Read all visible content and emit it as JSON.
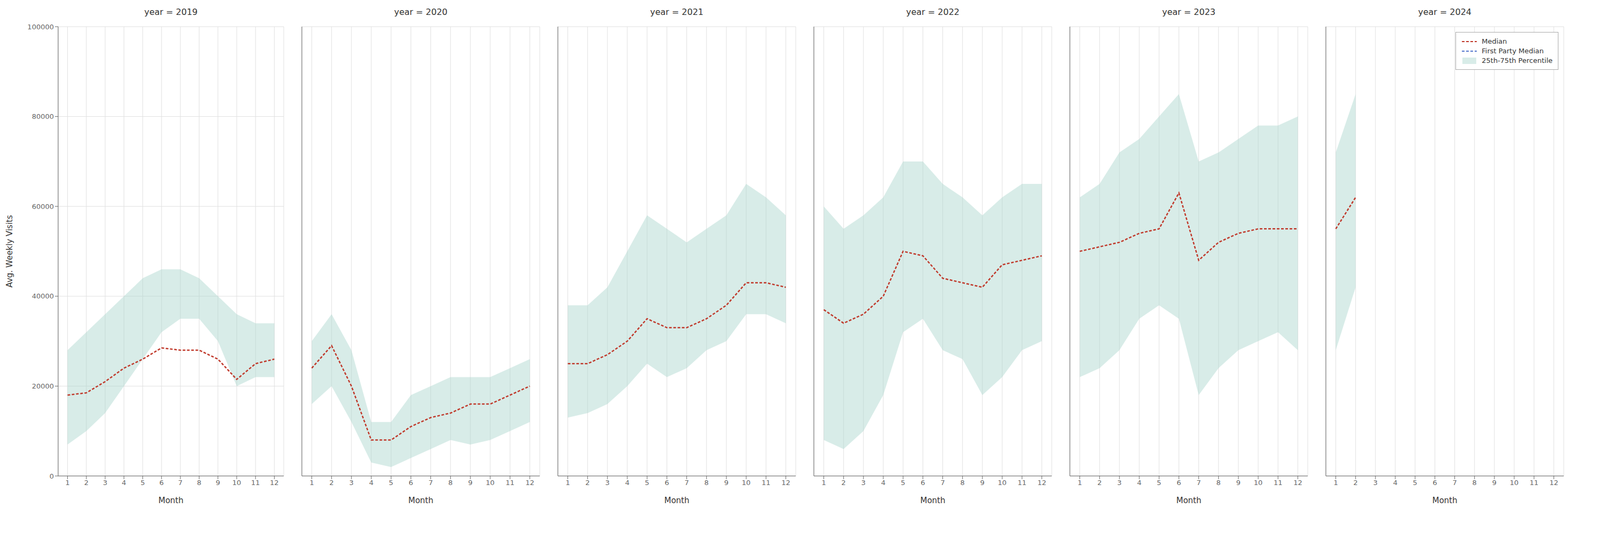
{
  "chart_data": [
    {
      "type": "line",
      "title": "year = 2019",
      "xlabel": "Month",
      "ylabel": "Avg. Weekly Visits",
      "x": [
        1,
        2,
        3,
        4,
        5,
        6,
        7,
        8,
        9,
        10,
        11,
        12
      ],
      "xlim": [
        0.5,
        12.5
      ],
      "xticks": [
        1,
        2,
        3,
        4,
        5,
        6,
        7,
        8,
        9,
        10,
        11,
        12
      ],
      "ylim": [
        0,
        100000
      ],
      "yticks": [
        0,
        20000,
        40000,
        60000,
        80000,
        100000
      ],
      "grid": true,
      "series": [
        {
          "name": "25th-75th Percentile",
          "type": "band",
          "color": "#a8d5cc",
          "q25": [
            7000,
            10000,
            14000,
            20000,
            26000,
            32000,
            35000,
            35000,
            30000,
            20000,
            22000,
            22000
          ],
          "q75": [
            28000,
            32000,
            36000,
            40000,
            44000,
            46000,
            46000,
            44000,
            40000,
            36000,
            34000,
            34000
          ]
        },
        {
          "name": "Median",
          "type": "line",
          "color": "#c0392b",
          "line_style": "dashed",
          "values": [
            18000,
            18500,
            21000,
            24000,
            26000,
            28500,
            28000,
            28000,
            26000,
            21500,
            25000,
            26000
          ]
        }
      ]
    },
    {
      "type": "line",
      "title": "year = 2020",
      "xlabel": "Month",
      "x": [
        1,
        2,
        3,
        4,
        5,
        6,
        7,
        8,
        9,
        10,
        11,
        12
      ],
      "xlim": [
        0.5,
        12.5
      ],
      "xticks": [
        1,
        2,
        3,
        4,
        5,
        6,
        7,
        8,
        9,
        10,
        11,
        12
      ],
      "ylim": [
        0,
        100000
      ],
      "yticks": [
        0,
        20000,
        40000,
        60000,
        80000,
        100000
      ],
      "grid": true,
      "tick_labels": "x",
      "series": [
        {
          "name": "25th-75th Percentile",
          "type": "band",
          "color": "#a8d5cc",
          "q25": [
            16000,
            20000,
            12000,
            3000,
            2000,
            4000,
            6000,
            8000,
            7000,
            8000,
            10000,
            12000
          ],
          "q75": [
            30000,
            36000,
            28000,
            12000,
            12000,
            18000,
            20000,
            22000,
            22000,
            22000,
            24000,
            26000
          ]
        },
        {
          "name": "Median",
          "type": "line",
          "color": "#c0392b",
          "line_style": "dashed",
          "values": [
            24000,
            29000,
            20000,
            8000,
            8000,
            11000,
            13000,
            14000,
            16000,
            16000,
            18000,
            20000
          ]
        }
      ]
    },
    {
      "type": "line",
      "title": "year = 2021",
      "xlabel": "Month",
      "x": [
        1,
        2,
        3,
        4,
        5,
        6,
        7,
        8,
        9,
        10,
        11,
        12
      ],
      "xlim": [
        0.5,
        12.5
      ],
      "xticks": [
        1,
        2,
        3,
        4,
        5,
        6,
        7,
        8,
        9,
        10,
        11,
        12
      ],
      "ylim": [
        0,
        100000
      ],
      "yticks": [
        0,
        20000,
        40000,
        60000,
        80000,
        100000
      ],
      "grid": true,
      "tick_labels": "x",
      "series": [
        {
          "name": "25th-75th Percentile",
          "type": "band",
          "color": "#a8d5cc",
          "q25": [
            13000,
            14000,
            16000,
            20000,
            25000,
            22000,
            24000,
            28000,
            30000,
            36000,
            36000,
            34000
          ],
          "q75": [
            38000,
            38000,
            42000,
            50000,
            58000,
            55000,
            52000,
            55000,
            58000,
            65000,
            62000,
            58000
          ]
        },
        {
          "name": "Median",
          "type": "line",
          "color": "#c0392b",
          "line_style": "dashed",
          "values": [
            25000,
            25000,
            27000,
            30000,
            35000,
            33000,
            33000,
            35000,
            38000,
            43000,
            43000,
            42000
          ]
        }
      ]
    },
    {
      "type": "line",
      "title": "year = 2022",
      "xlabel": "Month",
      "x": [
        1,
        2,
        3,
        4,
        5,
        6,
        7,
        8,
        9,
        10,
        11,
        12
      ],
      "xlim": [
        0.5,
        12.5
      ],
      "xticks": [
        1,
        2,
        3,
        4,
        5,
        6,
        7,
        8,
        9,
        10,
        11,
        12
      ],
      "ylim": [
        0,
        100000
      ],
      "yticks": [
        0,
        20000,
        40000,
        60000,
        80000,
        100000
      ],
      "grid": true,
      "tick_labels": "x",
      "series": [
        {
          "name": "25th-75th Percentile",
          "type": "band",
          "color": "#a8d5cc",
          "q25": [
            8000,
            6000,
            10000,
            18000,
            32000,
            35000,
            28000,
            26000,
            18000,
            22000,
            28000,
            30000
          ],
          "q75": [
            60000,
            55000,
            58000,
            62000,
            70000,
            70000,
            65000,
            62000,
            58000,
            62000,
            65000,
            65000
          ]
        },
        {
          "name": "Median",
          "type": "line",
          "color": "#c0392b",
          "line_style": "dashed",
          "values": [
            37000,
            34000,
            36000,
            40000,
            50000,
            49000,
            44000,
            43000,
            42000,
            47000,
            48000,
            49000
          ]
        }
      ]
    },
    {
      "type": "line",
      "title": "year = 2023",
      "xlabel": "Month",
      "x": [
        1,
        2,
        3,
        4,
        5,
        6,
        7,
        8,
        9,
        10,
        11,
        12
      ],
      "xlim": [
        0.5,
        12.5
      ],
      "xticks": [
        1,
        2,
        3,
        4,
        5,
        6,
        7,
        8,
        9,
        10,
        11,
        12
      ],
      "ylim": [
        0,
        100000
      ],
      "yticks": [
        0,
        20000,
        40000,
        60000,
        80000,
        100000
      ],
      "grid": true,
      "tick_labels": "x",
      "series": [
        {
          "name": "25th-75th Percentile",
          "type": "band",
          "color": "#a8d5cc",
          "q25": [
            22000,
            24000,
            28000,
            35000,
            38000,
            35000,
            18000,
            24000,
            28000,
            30000,
            32000,
            28000
          ],
          "q75": [
            62000,
            65000,
            72000,
            75000,
            80000,
            85000,
            70000,
            72000,
            75000,
            78000,
            78000,
            80000
          ]
        },
        {
          "name": "Median",
          "type": "line",
          "color": "#c0392b",
          "line_style": "dashed",
          "values": [
            50000,
            51000,
            52000,
            54000,
            55000,
            63000,
            48000,
            52000,
            54000,
            55000,
            55000,
            55000
          ]
        }
      ]
    },
    {
      "type": "line",
      "title": "year = 2024",
      "xlabel": "Month",
      "x": [
        1,
        2,
        3,
        4,
        5,
        6,
        7,
        8,
        9,
        10,
        11,
        12
      ],
      "xlim": [
        0.5,
        12.5
      ],
      "xticks": [
        1,
        2,
        3,
        4,
        5,
        6,
        7,
        8,
        9,
        10,
        11,
        12
      ],
      "ylim": [
        0,
        100000
      ],
      "yticks": [
        0,
        20000,
        40000,
        60000,
        80000,
        100000
      ],
      "grid": true,
      "tick_labels": "x",
      "legend": "upper right",
      "series": [
        {
          "name": "25th-75th Percentile",
          "type": "band",
          "color": "#a8d5cc",
          "q25": [
            28000,
            42000,
            null,
            null,
            null,
            null,
            null,
            null,
            null,
            null,
            null,
            null
          ],
          "q75": [
            72000,
            85000,
            null,
            null,
            null,
            null,
            null,
            null,
            null,
            null,
            null,
            null
          ]
        },
        {
          "name": "Median",
          "type": "line",
          "color": "#c0392b",
          "line_style": "dashed",
          "values": [
            55000,
            62000,
            null,
            null,
            null,
            null,
            null,
            null,
            null,
            null,
            null,
            null
          ]
        },
        {
          "name": "First Party Median",
          "type": "line",
          "color": "#5577cc",
          "line_style": "dashed",
          "values": [
            null,
            null,
            null,
            null,
            null,
            null,
            null,
            null,
            null,
            null,
            null,
            null
          ]
        }
      ]
    }
  ]
}
